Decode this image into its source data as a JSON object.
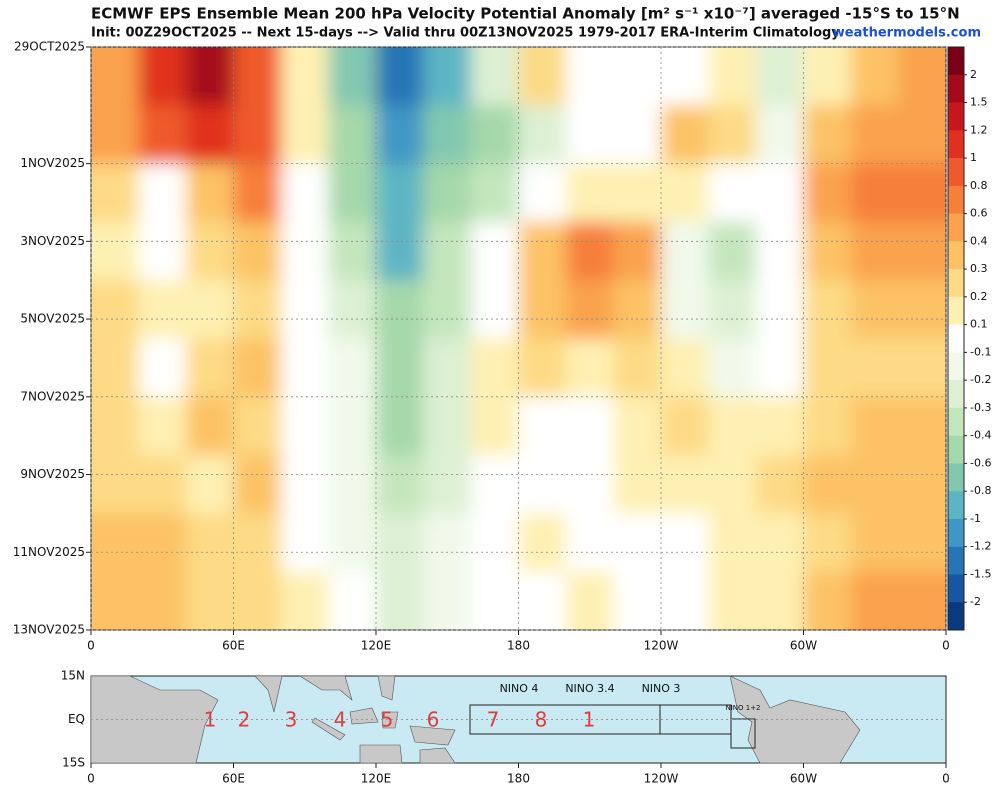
{
  "chart_data": {
    "type": "contourf",
    "title": "ECMWF EPS Ensemble Mean 200 hPa Velocity Potential Anomaly [m² s⁻¹ x10⁻⁷] averaged -15°S to 15°N",
    "subtitle": "Init: 00Z29OCT2025 -- Next 15-days --> Valid thru 00Z13NOV2025 1979-2017 ERA-Interim Climatology",
    "source": "weathermodels.com",
    "xlim": [
      0,
      360
    ],
    "xticks": [
      0,
      {
        "value": 60,
        "label": "60E"
      },
      {
        "value": 120,
        "label": "120E"
      },
      {
        "value": 180,
        "label": "180"
      },
      {
        "value": 240,
        "label": "120W"
      },
      {
        "value": 300,
        "label": "60W"
      },
      {
        "value": 360,
        "label": "0"
      }
    ],
    "ylim": [
      0,
      15
    ],
    "yticks": [
      {
        "value": 0,
        "label": "29OCT2025"
      },
      {
        "value": 3,
        "label": "1NOV2025"
      },
      {
        "value": 5,
        "label": "3NOV2025"
      },
      {
        "value": 7,
        "label": "5NOV2025"
      },
      {
        "value": 9,
        "label": "7NOV2025"
      },
      {
        "value": 11,
        "label": "9NOV2025"
      },
      {
        "value": 13,
        "label": "11NOV2025"
      },
      {
        "value": 15,
        "label": "13NOV2025"
      }
    ],
    "grid": true,
    "levels": [
      2,
      1.5,
      1.2,
      1,
      0.8,
      0.6,
      0.4,
      0.3,
      0.2,
      0.1,
      -0.1,
      -0.2,
      -0.3,
      -0.4,
      -0.6,
      -0.8,
      -1,
      -1.2,
      -1.5,
      -2
    ],
    "colors": [
      "#7a0018",
      "#a50a1c",
      "#c8161e",
      "#e0301f",
      "#ef5a2c",
      "#f67f3a",
      "#faa24d",
      "#fcc265",
      "#fdda85",
      "#fef0b2",
      "#ffffff",
      "#f1f9eb",
      "#ddf0d3",
      "#c4e6bd",
      "#a5d8aa",
      "#82c8b0",
      "#5db5c4",
      "#3f97c6",
      "#2875b5",
      "#1756a0",
      "#083a7d"
    ],
    "field_x": [
      10,
      30,
      50,
      70,
      90,
      110,
      130,
      150,
      170,
      190,
      210,
      230,
      250,
      270,
      290,
      310,
      330,
      350
    ],
    "field_y": [
      0.75,
      2.25,
      3.75,
      5.25,
      6.75,
      8.25,
      9.75,
      11.25,
      12.75,
      14.25
    ],
    "field": [
      [
        0.5,
        1.0,
        1.5,
        0.8,
        0.1,
        -0.8,
        -1.3,
        -1.0,
        -0.3,
        0.2,
        0.0,
        -0.1,
        0.0,
        0.1,
        -0.3,
        0.1,
        0.3,
        0.4
      ],
      [
        0.5,
        0.8,
        1.0,
        0.9,
        0.1,
        -0.6,
        -1.2,
        -0.8,
        -0.6,
        -0.3,
        -0.1,
        0.0,
        0.3,
        0.2,
        -0.2,
        0.3,
        0.5,
        0.5
      ],
      [
        0.2,
        0.0,
        0.3,
        0.6,
        0.0,
        -0.5,
        -1.0,
        -0.5,
        -0.4,
        0.0,
        0.1,
        0.1,
        0.1,
        -0.1,
        0.0,
        0.4,
        0.6,
        0.6
      ],
      [
        0.1,
        0.0,
        0.2,
        0.3,
        0.0,
        -0.4,
        -0.9,
        -0.4,
        -0.1,
        0.3,
        0.6,
        0.4,
        -0.2,
        -0.4,
        -0.1,
        0.3,
        0.4,
        0.4
      ],
      [
        0.2,
        0.1,
        0.1,
        0.2,
        0.0,
        -0.3,
        -0.6,
        -0.4,
        0.0,
        0.3,
        0.4,
        0.3,
        -0.2,
        -0.3,
        0.0,
        0.2,
        0.3,
        0.3
      ],
      [
        0.2,
        -0.1,
        0.2,
        0.3,
        0.0,
        -0.2,
        -0.5,
        -0.3,
        0.1,
        0.2,
        0.1,
        0.2,
        0.1,
        -0.2,
        0.0,
        0.2,
        0.2,
        0.2
      ],
      [
        0.2,
        0.1,
        0.3,
        0.2,
        0.0,
        -0.2,
        -0.5,
        -0.3,
        0.1,
        0.0,
        0.0,
        0.1,
        0.2,
        0.1,
        0.1,
        0.2,
        0.3,
        0.3
      ],
      [
        0.2,
        0.2,
        0.1,
        0.3,
        0.0,
        -0.2,
        -0.4,
        -0.3,
        0.0,
        0.0,
        0.0,
        0.1,
        0.1,
        0.1,
        0.2,
        0.3,
        0.3,
        0.3
      ],
      [
        0.3,
        0.3,
        0.2,
        0.2,
        0.0,
        -0.2,
        -0.3,
        -0.2,
        -0.1,
        0.1,
        0.0,
        0.0,
        -0.1,
        0.1,
        0.1,
        0.2,
        0.3,
        0.3
      ],
      [
        0.3,
        0.3,
        0.2,
        0.2,
        0.1,
        -0.1,
        -0.3,
        -0.2,
        -0.1,
        0.0,
        0.1,
        0.0,
        -0.1,
        0.1,
        0.1,
        0.3,
        0.4,
        0.4
      ]
    ]
  },
  "map": {
    "yticks": [
      "15N",
      "EQ",
      "15S"
    ],
    "regions": [
      "NINO 4",
      "NINO 3.4",
      "NINO 3",
      "NINO 1+2"
    ],
    "phases": [
      "1",
      "2",
      "3",
      "4",
      "5",
      "6",
      "7",
      "8",
      "1"
    ]
  }
}
